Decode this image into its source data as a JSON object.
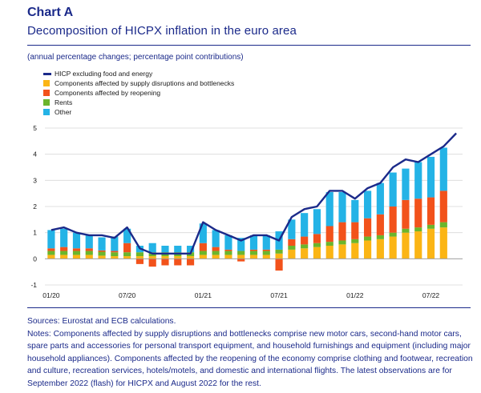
{
  "header": {
    "chart_label": "Chart A",
    "title": "Decomposition of HICPX inflation in the euro area",
    "subtitle": "(annual percentage changes; percentage point contributions)"
  },
  "legend": [
    {
      "key": "hicpx",
      "label": "HICP excluding food and energy",
      "kind": "line",
      "color": "#1b2a8a"
    },
    {
      "key": "supply",
      "label": "Components affected by supply disruptions and bottlenecks",
      "kind": "bar",
      "color": "#fbb515"
    },
    {
      "key": "reopening",
      "label": "Components affected by reopening",
      "kind": "bar",
      "color": "#f2521b"
    },
    {
      "key": "rents",
      "label": "Rents",
      "kind": "bar",
      "color": "#6bb52c"
    },
    {
      "key": "other",
      "label": "Other",
      "kind": "bar",
      "color": "#24b3e6"
    }
  ],
  "chart_data": {
    "type": "bar",
    "stacked": true,
    "x": [
      "01/20",
      "02/20",
      "03/20",
      "04/20",
      "05/20",
      "06/20",
      "07/20",
      "08/20",
      "09/20",
      "10/20",
      "11/20",
      "12/20",
      "01/21",
      "02/21",
      "03/21",
      "04/21",
      "05/21",
      "06/21",
      "07/21",
      "08/21",
      "09/21",
      "10/21",
      "11/21",
      "12/21",
      "01/22",
      "02/22",
      "03/22",
      "04/22",
      "05/22",
      "06/22",
      "07/22",
      "08/22",
      "09/22"
    ],
    "x_tick_labels": [
      "01/20",
      "07/20",
      "01/21",
      "07/21",
      "01/22",
      "07/22"
    ],
    "ylim": [
      -1,
      5
    ],
    "yticks": [
      -1,
      0,
      1,
      2,
      3,
      4,
      5
    ],
    "grid": true,
    "series": [
      {
        "name": "Components affected by supply disruptions and bottlenecks",
        "key": "supply",
        "color": "#fbb515",
        "values": [
          0.15,
          0.15,
          0.15,
          0.15,
          0.12,
          0.1,
          0.1,
          0.1,
          0.1,
          0.1,
          0.1,
          0.1,
          0.15,
          0.15,
          0.15,
          0.15,
          0.15,
          0.15,
          0.2,
          0.35,
          0.4,
          0.45,
          0.5,
          0.55,
          0.6,
          0.7,
          0.75,
          0.85,
          1.0,
          1.05,
          1.15,
          1.2,
          null
        ]
      },
      {
        "name": "Components affected by reopening",
        "key": "reopening",
        "color": "#f2521b",
        "values": [
          0.1,
          0.15,
          0.1,
          0.1,
          0.05,
          0.05,
          0.35,
          -0.2,
          -0.3,
          -0.25,
          -0.25,
          -0.25,
          0.3,
          0.15,
          0.05,
          -0.1,
          0.05,
          0.05,
          -0.45,
          0.25,
          0.3,
          0.35,
          0.6,
          0.7,
          0.65,
          0.7,
          0.8,
          1.0,
          1.1,
          1.1,
          1.05,
          1.2,
          null
        ]
      },
      {
        "name": "Rents",
        "key": "rents",
        "color": "#6bb52c",
        "values": [
          0.15,
          0.15,
          0.15,
          0.15,
          0.15,
          0.15,
          0.15,
          0.15,
          0.15,
          0.15,
          0.15,
          0.15,
          0.15,
          0.15,
          0.15,
          0.15,
          0.15,
          0.15,
          0.15,
          0.15,
          0.15,
          0.15,
          0.15,
          0.15,
          0.15,
          0.15,
          0.15,
          0.15,
          0.15,
          0.15,
          0.15,
          0.2,
          null
        ]
      },
      {
        "name": "Other",
        "key": "other",
        "color": "#24b3e6",
        "values": [
          0.7,
          0.7,
          0.6,
          0.5,
          0.5,
          0.55,
          0.55,
          0.25,
          0.35,
          0.25,
          0.25,
          0.25,
          0.75,
          0.65,
          0.55,
          0.5,
          0.55,
          0.55,
          0.7,
          0.75,
          0.9,
          0.95,
          1.3,
          1.15,
          0.85,
          1.05,
          1.2,
          1.3,
          1.2,
          1.4,
          1.55,
          1.65,
          null
        ]
      }
    ],
    "line": {
      "name": "HICP excluding food and energy",
      "key": "hicpx",
      "color": "#1b2a8a",
      "values": [
        1.1,
        1.2,
        1.0,
        0.9,
        0.9,
        0.8,
        1.2,
        0.4,
        0.2,
        0.2,
        0.2,
        0.2,
        1.4,
        1.1,
        0.9,
        0.7,
        0.9,
        0.9,
        0.7,
        1.6,
        1.9,
        2.0,
        2.6,
        2.6,
        2.3,
        2.7,
        2.9,
        3.5,
        3.8,
        3.7,
        4.0,
        4.3,
        4.8
      ]
    }
  },
  "notes": {
    "sources": "Sources: Eurostat and ECB calculations.",
    "text": "Notes: Components affected by supply disruptions and bottlenecks comprise new motor cars, second-hand motor cars, spare parts and accessories for personal transport equipment, and household furnishings and equipment (including major household appliances). Components affected by the reopening of the economy comprise clothing and footwear, recreation and culture, recreation services, hotels/motels, and domestic and international flights. The latest observations are for September 2022 (flash) for HICPX and August 2022 for the rest."
  }
}
